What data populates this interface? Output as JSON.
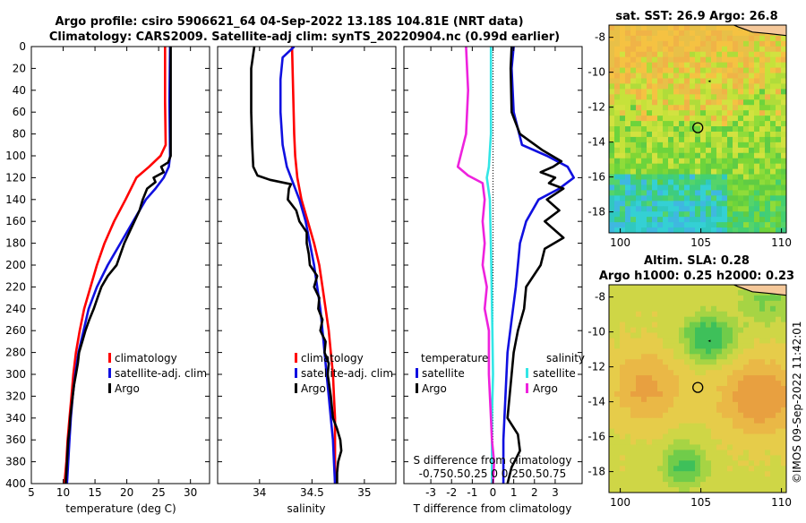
{
  "header": {
    "line1": "Argo profile: csiro 5906621_64 04-Sep-2022 13.18S 104.81E (NRT data)",
    "line2": "Climatology: CARS2009. Satellite-adj clim: synTS_20220904.nc (0.99d earlier)"
  },
  "credit": "©IMOS 09-Sep-2022 11:42:01",
  "colors": {
    "red": "#ff0000",
    "blue": "#1010e0",
    "black": "#000000",
    "cyan": "#33e6e6",
    "magenta": "#ee22dd"
  },
  "chart_data": [
    {
      "type": "line",
      "id": "temperature",
      "xlabel": "temperature (deg C)",
      "xlim": [
        5,
        33
      ],
      "xticks": [
        5,
        10,
        15,
        20,
        25,
        30
      ],
      "ylim": [
        0,
        400
      ],
      "yticks": [
        0,
        20,
        40,
        60,
        80,
        100,
        120,
        140,
        160,
        180,
        200,
        220,
        240,
        260,
        280,
        300,
        320,
        340,
        360,
        380,
        400
      ],
      "legend": [
        "climatology",
        "satellite-adj. clim",
        "Argo"
      ],
      "series": [
        {
          "name": "climatology",
          "color": "red",
          "points": [
            [
              26,
              0
            ],
            [
              26,
              50
            ],
            [
              26.1,
              90
            ],
            [
              25.3,
              100
            ],
            [
              23.5,
              110
            ],
            [
              21.5,
              120
            ],
            [
              19.8,
              140
            ],
            [
              18,
              160
            ],
            [
              16.5,
              180
            ],
            [
              15.3,
              200
            ],
            [
              14.3,
              220
            ],
            [
              13.3,
              240
            ],
            [
              12.6,
              260
            ],
            [
              12,
              280
            ],
            [
              11.6,
              300
            ],
            [
              11.3,
              320
            ],
            [
              11,
              340
            ],
            [
              10.7,
              360
            ],
            [
              10.5,
              380
            ],
            [
              10.2,
              400
            ]
          ]
        },
        {
          "name": "satellite-adj. clim",
          "color": "blue",
          "points": [
            [
              26.8,
              0
            ],
            [
              26.7,
              50
            ],
            [
              26.8,
              100
            ],
            [
              26.6,
              110
            ],
            [
              25.8,
              120
            ],
            [
              24.5,
              130
            ],
            [
              23,
              140
            ],
            [
              21,
              160
            ],
            [
              19,
              180
            ],
            [
              17,
              200
            ],
            [
              15.3,
              220
            ],
            [
              14,
              240
            ],
            [
              13.2,
              260
            ],
            [
              12.4,
              280
            ],
            [
              11.9,
              300
            ],
            [
              11.5,
              320
            ],
            [
              11.2,
              340
            ],
            [
              11,
              360
            ],
            [
              10.8,
              380
            ],
            [
              10.6,
              400
            ]
          ]
        },
        {
          "name": "Argo",
          "color": "black",
          "points": [
            [
              26.9,
              0
            ],
            [
              26.9,
              100
            ],
            [
              26.5,
              106
            ],
            [
              25.4,
              110
            ],
            [
              25.8,
              115
            ],
            [
              24.2,
              120
            ],
            [
              24.5,
              124
            ],
            [
              23.2,
              130
            ],
            [
              22.5,
              140
            ],
            [
              22,
              150
            ],
            [
              21.2,
              160
            ],
            [
              20.4,
              170
            ],
            [
              19.6,
              180
            ],
            [
              19,
              190
            ],
            [
              18.4,
              200
            ],
            [
              17,
              210
            ],
            [
              16,
              220
            ],
            [
              15.4,
              230
            ],
            [
              14.8,
              240
            ],
            [
              14.1,
              250
            ],
            [
              13.5,
              260
            ],
            [
              13,
              270
            ],
            [
              12.5,
              280
            ],
            [
              12.3,
              290
            ],
            [
              12,
              300
            ],
            [
              11.7,
              310
            ],
            [
              11.5,
              320
            ],
            [
              11.3,
              330
            ],
            [
              11.1,
              340
            ],
            [
              11,
              350
            ],
            [
              10.8,
              360
            ],
            [
              10.7,
              370
            ],
            [
              10.6,
              380
            ],
            [
              10.5,
              390
            ],
            [
              10.4,
              400
            ]
          ]
        }
      ]
    },
    {
      "type": "line",
      "id": "salinity",
      "xlabel": "salinity",
      "xlim": [
        33.6,
        35.3
      ],
      "xticks": [
        34,
        34.5,
        35
      ],
      "ylim": [
        0,
        400
      ],
      "legend": [
        "climatology",
        "satellite-adj. clim",
        "Argo"
      ],
      "series": [
        {
          "name": "climatology",
          "color": "red",
          "points": [
            [
              34.31,
              0
            ],
            [
              34.32,
              40
            ],
            [
              34.33,
              80
            ],
            [
              34.34,
              100
            ],
            [
              34.36,
              120
            ],
            [
              34.4,
              140
            ],
            [
              34.46,
              160
            ],
            [
              34.52,
              180
            ],
            [
              34.57,
              200
            ],
            [
              34.6,
              220
            ],
            [
              34.63,
              240
            ],
            [
              34.66,
              260
            ],
            [
              34.68,
              280
            ],
            [
              34.7,
              300
            ],
            [
              34.71,
              320
            ],
            [
              34.72,
              340
            ],
            [
              34.72,
              360
            ],
            [
              34.72,
              380
            ],
            [
              34.72,
              400
            ]
          ]
        },
        {
          "name": "satellite-adj. clim",
          "color": "blue",
          "points": [
            [
              34.33,
              0
            ],
            [
              34.22,
              10
            ],
            [
              34.2,
              30
            ],
            [
              34.2,
              60
            ],
            [
              34.22,
              90
            ],
            [
              34.26,
              110
            ],
            [
              34.32,
              125
            ],
            [
              34.38,
              140
            ],
            [
              34.44,
              160
            ],
            [
              34.48,
              180
            ],
            [
              34.52,
              200
            ],
            [
              34.55,
              220
            ],
            [
              34.58,
              240
            ],
            [
              34.6,
              260
            ],
            [
              34.62,
              280
            ],
            [
              34.64,
              300
            ],
            [
              34.66,
              320
            ],
            [
              34.68,
              340
            ],
            [
              34.7,
              360
            ],
            [
              34.71,
              380
            ],
            [
              34.72,
              400
            ]
          ]
        },
        {
          "name": "Argo",
          "color": "black",
          "points": [
            [
              33.95,
              0
            ],
            [
              33.92,
              20
            ],
            [
              33.92,
              60
            ],
            [
              33.93,
              90
            ],
            [
              33.94,
              110
            ],
            [
              33.98,
              118
            ],
            [
              34.1,
              122
            ],
            [
              34.3,
              126
            ],
            [
              34.28,
              130
            ],
            [
              34.27,
              140
            ],
            [
              34.35,
              150
            ],
            [
              34.38,
              160
            ],
            [
              34.45,
              170
            ],
            [
              34.45,
              180
            ],
            [
              34.47,
              190
            ],
            [
              34.48,
              200
            ],
            [
              34.55,
              210
            ],
            [
              34.52,
              220
            ],
            [
              34.57,
              230
            ],
            [
              34.56,
              240
            ],
            [
              34.6,
              250
            ],
            [
              34.58,
              260
            ],
            [
              34.63,
              270
            ],
            [
              34.62,
              280
            ],
            [
              34.66,
              290
            ],
            [
              34.65,
              300
            ],
            [
              34.68,
              320
            ],
            [
              34.7,
              340
            ],
            [
              34.74,
              350
            ],
            [
              34.77,
              360
            ],
            [
              34.78,
              370
            ],
            [
              34.75,
              380
            ],
            [
              34.74,
              390
            ],
            [
              34.74,
              400
            ]
          ]
        }
      ]
    },
    {
      "type": "line",
      "id": "difference",
      "xlabel": "T difference from climatology",
      "xlim": [
        -4.3,
        4.3
      ],
      "xticks": [
        -3,
        -2,
        -1,
        0,
        1,
        2,
        3
      ],
      "top_label": "S difference from climatology",
      "top_ticks": [
        "-0.75",
        "0.5",
        "0.25",
        "0",
        "0.25",
        "0.5",
        "0.75"
      ],
      "ylim": [
        0,
        400
      ],
      "legend_left_title": "temperature",
      "legend_right_title": "salinity",
      "legend_left": [
        "satellite",
        "Argo"
      ],
      "legend_right": [
        "satellite",
        "Argo"
      ],
      "series": [
        {
          "name": "T satellite",
          "color": "blue",
          "points": [
            [
              1.0,
              0
            ],
            [
              0.9,
              20
            ],
            [
              1.0,
              60
            ],
            [
              1.4,
              90
            ],
            [
              2.6,
              100
            ],
            [
              3.6,
              110
            ],
            [
              3.9,
              120
            ],
            [
              3.2,
              130
            ],
            [
              2.2,
              140
            ],
            [
              1.6,
              160
            ],
            [
              1.3,
              180
            ],
            [
              1.1,
              220
            ],
            [
              0.9,
              250
            ],
            [
              0.7,
              280
            ],
            [
              0.6,
              320
            ],
            [
              0.5,
              360
            ],
            [
              0.5,
              400
            ]
          ]
        },
        {
          "name": "T Argo",
          "color": "black",
          "points": [
            [
              0.9,
              0
            ],
            [
              0.85,
              20
            ],
            [
              0.9,
              60
            ],
            [
              1.3,
              80
            ],
            [
              2.4,
              95
            ],
            [
              3.3,
              105
            ],
            [
              2.9,
              110
            ],
            [
              2.3,
              115
            ],
            [
              3.0,
              120
            ],
            [
              2.7,
              125
            ],
            [
              3.4,
              130
            ],
            [
              2.6,
              140
            ],
            [
              3.2,
              150
            ],
            [
              2.5,
              160
            ],
            [
              3.4,
              175
            ],
            [
              2.5,
              185
            ],
            [
              2.3,
              200
            ],
            [
              1.6,
              220
            ],
            [
              1.5,
              240
            ],
            [
              1.2,
              260
            ],
            [
              1.0,
              280
            ],
            [
              0.9,
              300
            ],
            [
              0.8,
              320
            ],
            [
              0.7,
              340
            ],
            [
              1.2,
              355
            ],
            [
              1.3,
              370
            ],
            [
              0.9,
              385
            ],
            [
              0.7,
              400
            ]
          ]
        },
        {
          "name": "S satellite",
          "color": "cyan",
          "points": [
            [
              -0.1,
              0
            ],
            [
              -0.1,
              80
            ],
            [
              -0.2,
              110
            ],
            [
              -0.3,
              120
            ],
            [
              -0.15,
              140
            ],
            [
              -0.08,
              200
            ],
            [
              -0.03,
              260
            ],
            [
              0,
              300
            ],
            [
              -0.05,
              340
            ],
            [
              -0.05,
              400
            ]
          ]
        },
        {
          "name": "S Argo",
          "color": "magenta",
          "points": [
            [
              -1.3,
              0
            ],
            [
              -1.2,
              40
            ],
            [
              -1.3,
              80
            ],
            [
              -1.7,
              110
            ],
            [
              -1.2,
              118
            ],
            [
              -0.5,
              125
            ],
            [
              -0.4,
              140
            ],
            [
              -0.5,
              160
            ],
            [
              -0.4,
              180
            ],
            [
              -0.5,
              200
            ],
            [
              -0.3,
              220
            ],
            [
              -0.4,
              240
            ],
            [
              -0.2,
              260
            ],
            [
              -0.2,
              300
            ],
            [
              -0.1,
              340
            ],
            [
              -0.05,
              360
            ],
            [
              0.05,
              380
            ],
            [
              0,
              400
            ]
          ]
        }
      ]
    },
    {
      "type": "heatmap",
      "id": "sst_map",
      "title": "sat. SST: 26.9 Argo: 26.8",
      "xticks": [
        100,
        105,
        110
      ],
      "yticks": [
        -8,
        -10,
        -12,
        -14,
        -16,
        -18
      ],
      "xlim": [
        99.3,
        110.3
      ],
      "ylim": [
        -19.2,
        -7.3
      ],
      "argo_position": [
        104.81,
        -13.18
      ]
    },
    {
      "type": "heatmap",
      "id": "sla_map",
      "title_line1": "Altim. SLA: 0.28",
      "title_line2": "Argo h1000: 0.25 h2000: 0.23",
      "xticks": [
        100,
        105,
        110
      ],
      "yticks": [
        -8,
        -10,
        -12,
        -14,
        -16,
        -18
      ],
      "xlim": [
        99.3,
        110.3
      ],
      "ylim": [
        -19.2,
        -7.3
      ],
      "argo_position": [
        104.81,
        -13.18
      ]
    }
  ]
}
